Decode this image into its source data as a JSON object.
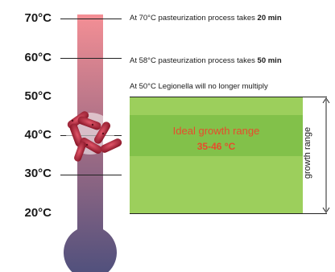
{
  "temperatures": [
    "70°C",
    "60°C",
    "50°C",
    "40°C",
    "30°C",
    "20°C"
  ],
  "notes": [
    {
      "prefix": "At 70°C pasteurization process takes ",
      "bold": "20 min"
    },
    {
      "prefix": "At 58°C pasteurization process takes ",
      "bold": "50 min"
    },
    {
      "prefix": "At 50°C Legionella will no longer multiply",
      "bold": ""
    }
  ],
  "range": {
    "title": "Ideal growth range",
    "value": "35-46 °C",
    "side_label": "growth range"
  },
  "colors": {
    "thermometer_top": "#f28c93",
    "thermometer_bottom": "#4d4f7c",
    "range_fill": "#9ccf5c",
    "ideal_fill": "#82c14a",
    "range_text": "#e74c2c"
  },
  "icons": [
    "thermometer-icon",
    "legionella-bacteria-icon",
    "double-arrow-icon"
  ]
}
